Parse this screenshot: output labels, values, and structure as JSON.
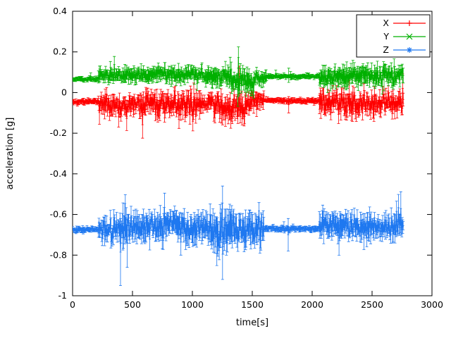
{
  "page": {
    "background": "#ffffff"
  },
  "chart_data": {
    "type": "line",
    "style": "errorbars",
    "title": "",
    "xlabel": "time[s]",
    "ylabel": "acceleration [g]",
    "xlim": [
      0,
      3000
    ],
    "ylim": [
      -1,
      0.4
    ],
    "xticks": {
      "values": [
        0,
        500,
        1000,
        1500,
        2000,
        2500,
        3000
      ],
      "labels": [
        "0",
        "500",
        "1000",
        "1500",
        "2000",
        "2500",
        "3000"
      ]
    },
    "yticks": {
      "values": [
        -1,
        -0.8,
        -0.6,
        -0.4,
        -0.2,
        0,
        0.2,
        0.4
      ],
      "labels": [
        "-1",
        "-0.8",
        "-0.6",
        "-0.4",
        "-0.2",
        "0",
        "0.2",
        "0.4"
      ]
    },
    "grid": false,
    "legend": {
      "position": "top-right",
      "entries": [
        "X",
        "Y",
        "Z"
      ]
    },
    "axis_color": "#000000",
    "t_end": 2760,
    "sample_dt": 4,
    "series": [
      {
        "name": "X",
        "color": "#ff0000",
        "marker": "plus",
        "segments": [
          {
            "t0": 0,
            "t1": 215,
            "mean": -0.045,
            "noise": 0.008,
            "spread": 0.012
          },
          {
            "t0": 215,
            "t1": 520,
            "mean": -0.055,
            "noise": 0.035,
            "spread": 0.045
          },
          {
            "t0": 520,
            "t1": 560,
            "mean": -0.05,
            "noise": 0.02,
            "spread": 0.03
          },
          {
            "t0": 560,
            "t1": 1080,
            "mean": -0.06,
            "noise": 0.04,
            "spread": 0.05
          },
          {
            "t0": 1080,
            "t1": 1180,
            "mean": -0.05,
            "noise": 0.025,
            "spread": 0.035
          },
          {
            "t0": 1180,
            "t1": 1450,
            "mean": -0.075,
            "noise": 0.045,
            "spread": 0.055
          },
          {
            "t0": 1450,
            "t1": 1600,
            "mean": -0.05,
            "noise": 0.03,
            "spread": 0.04
          },
          {
            "t0": 1600,
            "t1": 2060,
            "mean": -0.04,
            "noise": 0.006,
            "spread": 0.012
          },
          {
            "t0": 2060,
            "t1": 2160,
            "mean": -0.05,
            "noise": 0.035,
            "spread": 0.05
          },
          {
            "t0": 2160,
            "t1": 2360,
            "mean": -0.06,
            "noise": 0.04,
            "spread": 0.05
          },
          {
            "t0": 2360,
            "t1": 2760,
            "mean": -0.05,
            "noise": 0.035,
            "spread": 0.045
          }
        ],
        "spikes": [
          {
            "t": 1390,
            "lo": -0.05,
            "hi": 0.13
          },
          {
            "t": 1805,
            "lo": -0.1,
            "hi": -0.02
          }
        ]
      },
      {
        "name": "Y",
        "color": "#00b000",
        "marker": "cross",
        "segments": [
          {
            "t0": 0,
            "t1": 215,
            "mean": 0.065,
            "noise": 0.006,
            "spread": 0.01
          },
          {
            "t0": 215,
            "t1": 540,
            "mean": 0.085,
            "noise": 0.02,
            "spread": 0.03
          },
          {
            "t0": 540,
            "t1": 1100,
            "mean": 0.09,
            "noise": 0.022,
            "spread": 0.035
          },
          {
            "t0": 1100,
            "t1": 1340,
            "mean": 0.08,
            "noise": 0.025,
            "spread": 0.04
          },
          {
            "t0": 1340,
            "t1": 1520,
            "mean": 0.055,
            "noise": 0.035,
            "spread": 0.05
          },
          {
            "t0": 1520,
            "t1": 1620,
            "mean": 0.075,
            "noise": 0.02,
            "spread": 0.03
          },
          {
            "t0": 1620,
            "t1": 2060,
            "mean": 0.08,
            "noise": 0.006,
            "spread": 0.012
          },
          {
            "t0": 2060,
            "t1": 2420,
            "mean": 0.08,
            "noise": 0.03,
            "spread": 0.045
          },
          {
            "t0": 2420,
            "t1": 2760,
            "mean": 0.085,
            "noise": 0.03,
            "spread": 0.04
          }
        ],
        "spikes": [
          {
            "t": 1385,
            "lo": 0.12,
            "hi": 0.225
          },
          {
            "t": 1805,
            "lo": 0.05,
            "hi": 0.12
          }
        ]
      },
      {
        "name": "Z",
        "color": "#1f78f0",
        "marker": "star",
        "segments": [
          {
            "t0": 0,
            "t1": 215,
            "mean": -0.675,
            "noise": 0.008,
            "spread": 0.012
          },
          {
            "t0": 215,
            "t1": 420,
            "mean": -0.67,
            "noise": 0.035,
            "spread": 0.05
          },
          {
            "t0": 420,
            "t1": 460,
            "mean": -0.68,
            "noise": 0.05,
            "spread": 0.12
          },
          {
            "t0": 460,
            "t1": 760,
            "mean": -0.665,
            "noise": 0.04,
            "spread": 0.06
          },
          {
            "t0": 760,
            "t1": 900,
            "mean": -0.64,
            "noise": 0.035,
            "spread": 0.06
          },
          {
            "t0": 900,
            "t1": 1150,
            "mean": -0.665,
            "noise": 0.04,
            "spread": 0.06
          },
          {
            "t0": 1150,
            "t1": 1350,
            "mean": -0.68,
            "noise": 0.05,
            "spread": 0.09
          },
          {
            "t0": 1350,
            "t1": 1600,
            "mean": -0.67,
            "noise": 0.045,
            "spread": 0.07
          },
          {
            "t0": 1600,
            "t1": 2060,
            "mean": -0.67,
            "noise": 0.007,
            "spread": 0.014
          },
          {
            "t0": 2060,
            "t1": 2300,
            "mean": -0.655,
            "noise": 0.035,
            "spread": 0.06
          },
          {
            "t0": 2300,
            "t1": 2500,
            "mean": -0.66,
            "noise": 0.04,
            "spread": 0.06
          },
          {
            "t0": 2500,
            "t1": 2760,
            "mean": -0.665,
            "noise": 0.035,
            "spread": 0.05
          }
        ],
        "spikes": [
          {
            "t": 400,
            "lo": -0.95,
            "hi": -0.62
          },
          {
            "t": 1250,
            "lo": -0.92,
            "hi": -0.46
          },
          {
            "t": 1800,
            "lo": -0.78,
            "hi": -0.62
          }
        ]
      }
    ]
  }
}
